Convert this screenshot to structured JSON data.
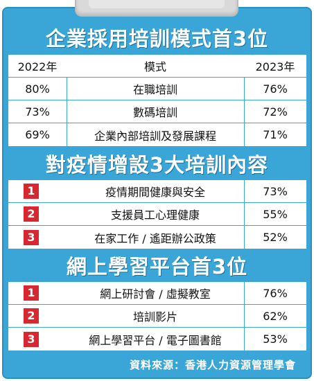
{
  "sections": [
    {
      "title": "企業採用培訓模式首3位",
      "header": {
        "left": "2022年",
        "mid": "模式",
        "right": "2023年"
      },
      "rows": [
        {
          "left": "80%",
          "mid": "在職培訓",
          "right": "76%"
        },
        {
          "left": "73%",
          "mid": "數碼培訓",
          "right": "72%"
        },
        {
          "left": "69%",
          "mid": "企業內部培訓及發展課程",
          "right": "71%"
        }
      ]
    },
    {
      "title": "對疫情增設3大培訓內容",
      "rows": [
        {
          "rank": "1",
          "mid": "疫情期間健康與安全",
          "right": "73%"
        },
        {
          "rank": "2",
          "mid": "支援員工心理健康",
          "right": "55%"
        },
        {
          "rank": "3",
          "mid": "在家工作 / 遙距辦公政策",
          "right": "52%"
        }
      ]
    },
    {
      "title": "網上學習平台首3位",
      "rows": [
        {
          "rank": "1",
          "mid": "網上研討會 / 虛擬教室",
          "right": "76%"
        },
        {
          "rank": "2",
          "mid": "培訓影片",
          "right": "62%"
        },
        {
          "rank": "3",
          "mid": "網上學習平台 / 電子圖書館",
          "right": "53%"
        }
      ]
    }
  ],
  "source": "資料來源：香港人力資源管理學會",
  "colors": {
    "background": "#3aa6d8",
    "badge": "#d7282f",
    "table": "#ffffff"
  }
}
